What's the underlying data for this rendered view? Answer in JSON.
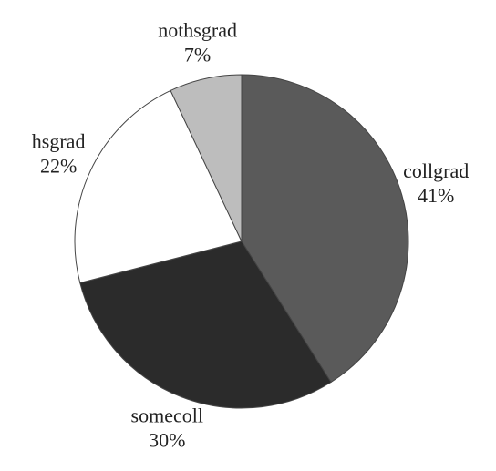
{
  "chart_data": {
    "type": "pie",
    "categories": [
      "collgrad",
      "somecoll",
      "hsgrad",
      "nothsgrad"
    ],
    "values": [
      41,
      30,
      22,
      7
    ],
    "value_labels": [
      "41%",
      "30%",
      "22%",
      "7%"
    ],
    "colors": [
      "#5a5a5a",
      "#2b2b2b",
      "#ffffff",
      "#bdbdbd"
    ]
  }
}
